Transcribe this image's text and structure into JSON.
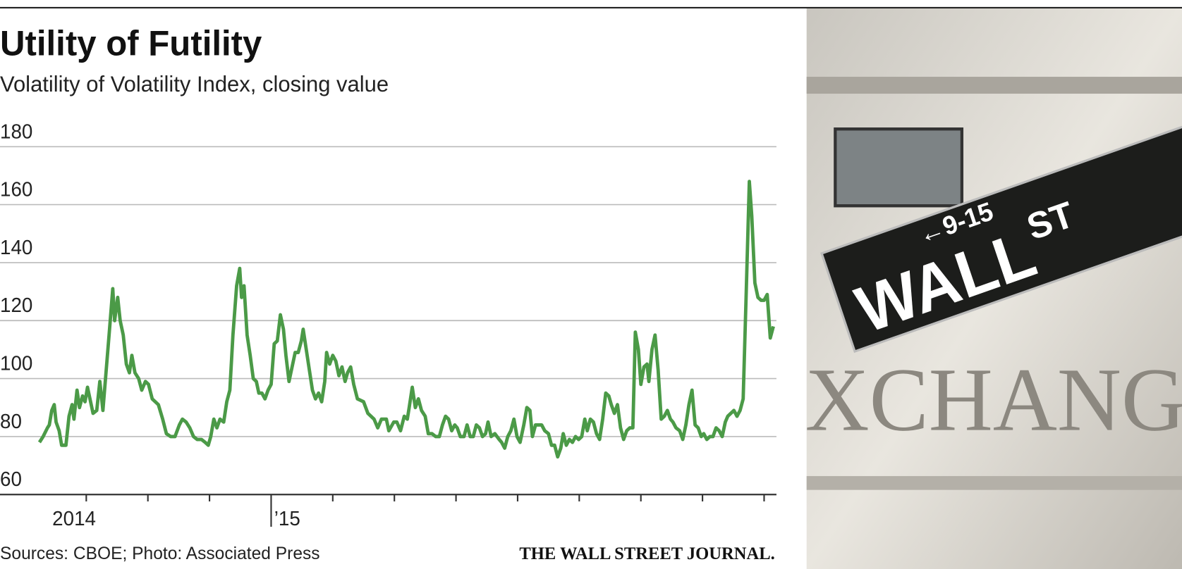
{
  "chart_data": {
    "type": "line",
    "title": "Utility of Futility",
    "subtitle": "Volatility of Volatility Index, closing value",
    "source": "Sources: CBOE; Photo: Associated Press",
    "publisher": "THE WALL STREET JOURNAL.",
    "ylim": [
      60,
      180
    ],
    "yticks": [
      60,
      80,
      100,
      120,
      140,
      160,
      180
    ],
    "grid": true,
    "xlim": [
      -4.4,
      8.2
    ],
    "xticks": [
      -3,
      -2,
      -1,
      0,
      1,
      2,
      3,
      4,
      5,
      6,
      7,
      8
    ],
    "xtick_labels": [
      {
        "value": -3.6,
        "label": "2014"
      },
      {
        "value": 0,
        "label": "’15"
      }
    ],
    "series": [
      {
        "color": "#4b9a47",
        "x": [
          -3.76,
          -3.7,
          -3.63,
          -3.6,
          -3.56,
          -3.52,
          -3.49,
          -3.44,
          -3.4,
          -3.33,
          -3.28,
          -3.23,
          -3.2,
          -3.15,
          -3.11,
          -3.06,
          -3.02,
          -2.98,
          -2.94,
          -2.89,
          -2.83,
          -2.78,
          -2.73,
          -2.68,
          -2.63,
          -2.57,
          -2.54,
          -2.49,
          -2.45,
          -2.4,
          -2.35,
          -2.3,
          -2.26,
          -2.21,
          -2.15,
          -2.1,
          -2.04,
          -1.99,
          -1.93,
          -1.83,
          -1.76,
          -1.7,
          -1.63,
          -1.56,
          -1.49,
          -1.44,
          -1.38,
          -1.32,
          -1.26,
          -1.2,
          -1.13,
          -1.07,
          -1.02,
          -0.98,
          -0.93,
          -0.88,
          -0.83,
          -0.77,
          -0.72,
          -0.67,
          -0.62,
          -0.56,
          -0.51,
          -0.48,
          -0.44,
          -0.39,
          -0.34,
          -0.29,
          -0.24,
          -0.2,
          -0.15,
          -0.1,
          -0.05,
          0,
          0.05,
          0.1,
          0.15,
          0.2,
          0.24,
          0.29,
          0.34,
          0.39,
          0.44,
          0.49,
          0.52,
          0.57,
          0.62,
          0.67,
          0.72,
          0.77,
          0.82,
          0.87,
          0.9,
          0.95,
          1.0,
          1.05,
          1.1,
          1.15,
          1.2,
          1.24,
          1.29,
          1.34,
          1.4,
          1.5,
          1.57,
          1.67,
          1.73,
          1.79,
          1.87,
          1.91,
          1.99,
          2.04,
          2.1,
          2.16,
          2.21,
          2.24,
          2.29,
          2.34,
          2.39,
          2.44,
          2.5,
          2.55,
          2.61,
          2.67,
          2.73,
          2.78,
          2.83,
          2.88,
          2.93,
          2.98,
          3.02,
          3.07,
          3.13,
          3.18,
          3.23,
          3.28,
          3.33,
          3.38,
          3.43,
          3.48,
          3.52,
          3.57,
          3.63,
          3.7,
          3.74,
          3.79,
          3.84,
          3.89,
          3.94,
          3.99,
          4.04,
          4.1,
          4.15,
          4.2,
          4.24,
          4.29,
          4.34,
          4.39,
          4.44,
          4.5,
          4.55,
          4.6,
          4.65,
          4.7,
          4.74,
          4.79,
          4.84,
          4.89,
          4.94,
          4.99,
          5.04,
          5.09,
          5.13,
          5.18,
          5.23,
          5.28,
          5.33,
          5.38,
          5.43,
          5.48,
          5.52,
          5.57,
          5.62,
          5.67,
          5.72,
          5.77,
          5.82,
          5.87,
          5.91,
          5.96,
          6.0,
          6.05,
          6.1,
          6.13,
          6.18,
          6.23,
          6.28,
          6.33,
          6.38,
          6.43,
          6.48,
          6.52,
          6.57,
          6.63,
          6.68,
          6.73,
          6.78,
          6.83,
          6.88,
          6.93,
          6.98,
          7.02,
          7.07,
          7.12,
          7.17,
          7.22,
          7.27,
          7.32,
          7.37,
          7.41,
          7.46,
          7.51,
          7.56,
          7.61,
          7.66,
          7.71,
          7.76,
          7.8,
          7.85,
          7.9,
          7.95,
          8.0,
          8.05,
          8.1,
          8.15
        ],
        "values": [
          78,
          80,
          83,
          84,
          89,
          91,
          85,
          82,
          77,
          77,
          87,
          91,
          86,
          96,
          90,
          94,
          92,
          97,
          93,
          88,
          89,
          99,
          89,
          102,
          115,
          131,
          120,
          128,
          120,
          115,
          105,
          102,
          108,
          102,
          100,
          96,
          99,
          98,
          93,
          91,
          86,
          81,
          80,
          80,
          84,
          86,
          85,
          83,
          80,
          79,
          79,
          78,
          77,
          80,
          86,
          83,
          86,
          85,
          92,
          96,
          115,
          132,
          138,
          128,
          132,
          115,
          108,
          100,
          99,
          95,
          95,
          93,
          96,
          98,
          112,
          113,
          122,
          117,
          108,
          99,
          104,
          109,
          109,
          113,
          117,
          110,
          103,
          96,
          93,
          95,
          92,
          99,
          109,
          105,
          108,
          106,
          101,
          104,
          99,
          102,
          104,
          98,
          93,
          92,
          88,
          86,
          83,
          86,
          86,
          82,
          85,
          85,
          82,
          87,
          86,
          90,
          97,
          90,
          93,
          89,
          87,
          81,
          81,
          80,
          80,
          84,
          87,
          86,
          82,
          84,
          83,
          80,
          80,
          84,
          80,
          80,
          84,
          83,
          80,
          81,
          85,
          80,
          81,
          79,
          78,
          76,
          80,
          82,
          86,
          80,
          78,
          84,
          90,
          89,
          80,
          84,
          84,
          84,
          82,
          81,
          77,
          77,
          73,
          76,
          81,
          77,
          79,
          78,
          80,
          79,
          80,
          86,
          82,
          86,
          85,
          81,
          79,
          86,
          95,
          94,
          91,
          88,
          91,
          83,
          79,
          82,
          83,
          83,
          116,
          110,
          98,
          104,
          105,
          99,
          110,
          115,
          103,
          86,
          87,
          89,
          86,
          85,
          83,
          82,
          79,
          84,
          91,
          96,
          84,
          83,
          80,
          81,
          79,
          80,
          80,
          83,
          82,
          80,
          85,
          87,
          88,
          89,
          87,
          89,
          93,
          130,
          168,
          156,
          133,
          128,
          127,
          127,
          129,
          114,
          118
        ]
      }
    ]
  },
  "photo": {
    "sign_number": "←9-15",
    "sign_street": "WALL",
    "sign_suffix": "ST",
    "building": "XCHANGE"
  }
}
